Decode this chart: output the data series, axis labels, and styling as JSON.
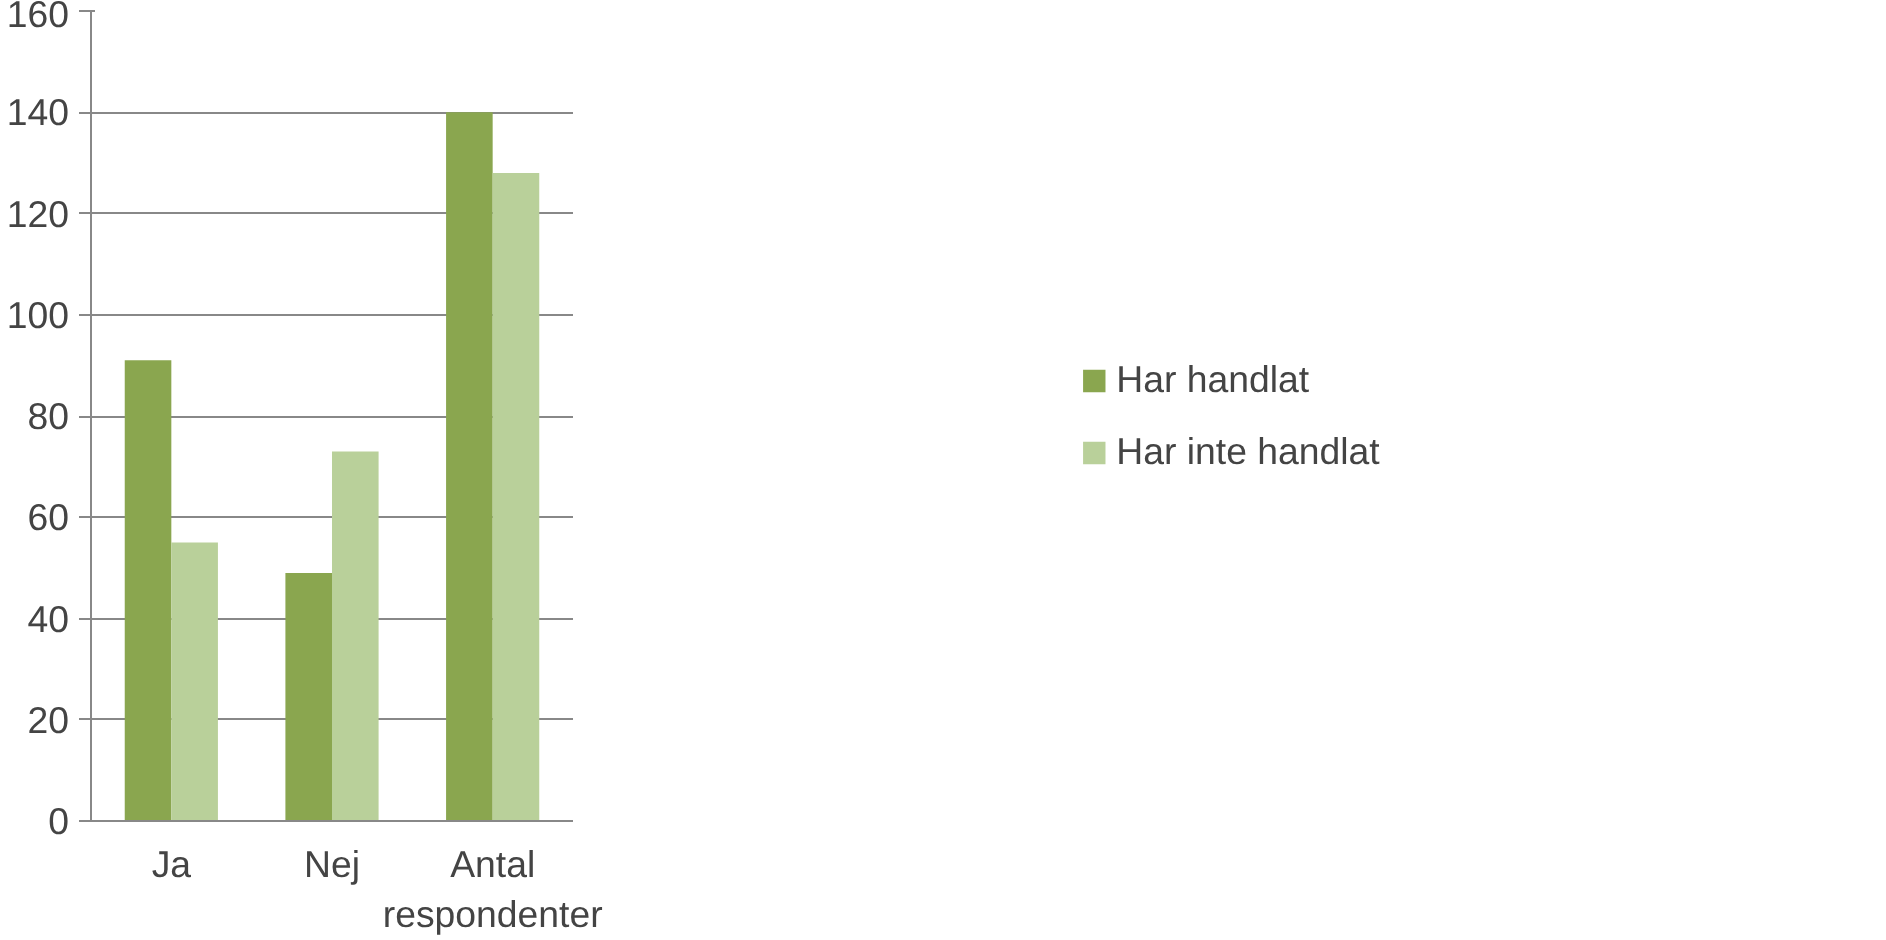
{
  "chart_data": {
    "type": "bar",
    "categories": [
      "Ja",
      "Nej",
      "Antal respondenter"
    ],
    "series": [
      {
        "name": "Har handlat",
        "color": "#8aa64f",
        "values": [
          91,
          49,
          140
        ]
      },
      {
        "name": "Har inte handlat",
        "color": "#b9d09a",
        "values": [
          55,
          73,
          128
        ]
      }
    ],
    "ylim": [
      0,
      160
    ],
    "yticks": [
      0,
      20,
      40,
      60,
      80,
      100,
      120,
      140,
      160
    ],
    "grid": "y",
    "legend": "right"
  }
}
